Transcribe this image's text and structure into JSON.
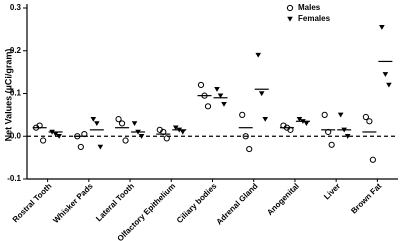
{
  "chart_data": {
    "type": "dot",
    "y_label": "Net Values (µCi/gram)",
    "categories": [
      "Rostral Tooth",
      "Whisker Pads",
      "Lateral Tooth",
      "Olfactory Epithelium",
      "Ciliary bodies",
      "Adrenal Gland",
      "Anogenital",
      "Liver",
      "Brown Fat"
    ],
    "series": [
      {
        "name": "Males",
        "marker": "circle",
        "color": "#000000",
        "values": [
          [
            0.02,
            0.025,
            -0.01
          ],
          [
            0.0,
            -0.025,
            0.005
          ],
          [
            0.04,
            0.03,
            -0.01
          ],
          [
            0.015,
            0.01,
            -0.005
          ],
          [
            0.12,
            0.095,
            0.07
          ],
          [
            0.05,
            0.0,
            -0.03
          ],
          [
            0.025,
            0.02,
            0.015
          ],
          [
            0.05,
            0.01,
            -0.02
          ],
          [
            0.045,
            0.035,
            -0.055
          ]
        ],
        "means": [
          0.02,
          0.0,
          0.02,
          0.005,
          0.095,
          0.02,
          0.02,
          0.015,
          0.01
        ]
      },
      {
        "name": "Females",
        "marker": "triangle",
        "color": "#000000",
        "values": [
          [
            0.01,
            0.005,
            0.0
          ],
          [
            0.04,
            0.03,
            -0.025
          ],
          [
            0.03,
            0.01,
            0.0
          ],
          [
            0.02,
            0.015,
            0.01
          ],
          [
            0.11,
            0.095,
            0.075
          ],
          [
            0.19,
            0.1,
            0.04
          ],
          [
            0.04,
            0.035,
            0.03
          ],
          [
            0.05,
            0.015,
            0.0
          ],
          [
            0.255,
            0.145,
            0.12
          ]
        ],
        "means": [
          0.01,
          0.015,
          0.01,
          0.015,
          0.09,
          0.11,
          0.035,
          0.015,
          0.175
        ]
      }
    ],
    "reference_line": 0.0,
    "ylim": [
      -0.1,
      0.3
    ],
    "yticks": [
      {
        "value": -0.1,
        "label": "-0.1"
      },
      {
        "value": 0.0,
        "label": "0.0"
      },
      {
        "value": 0.1,
        "label": "0.1"
      },
      {
        "value": 0.2,
        "label": "0.2"
      },
      {
        "value": 0.3,
        "label": "0.3"
      }
    ],
    "grid": false,
    "legend": "top-right"
  }
}
